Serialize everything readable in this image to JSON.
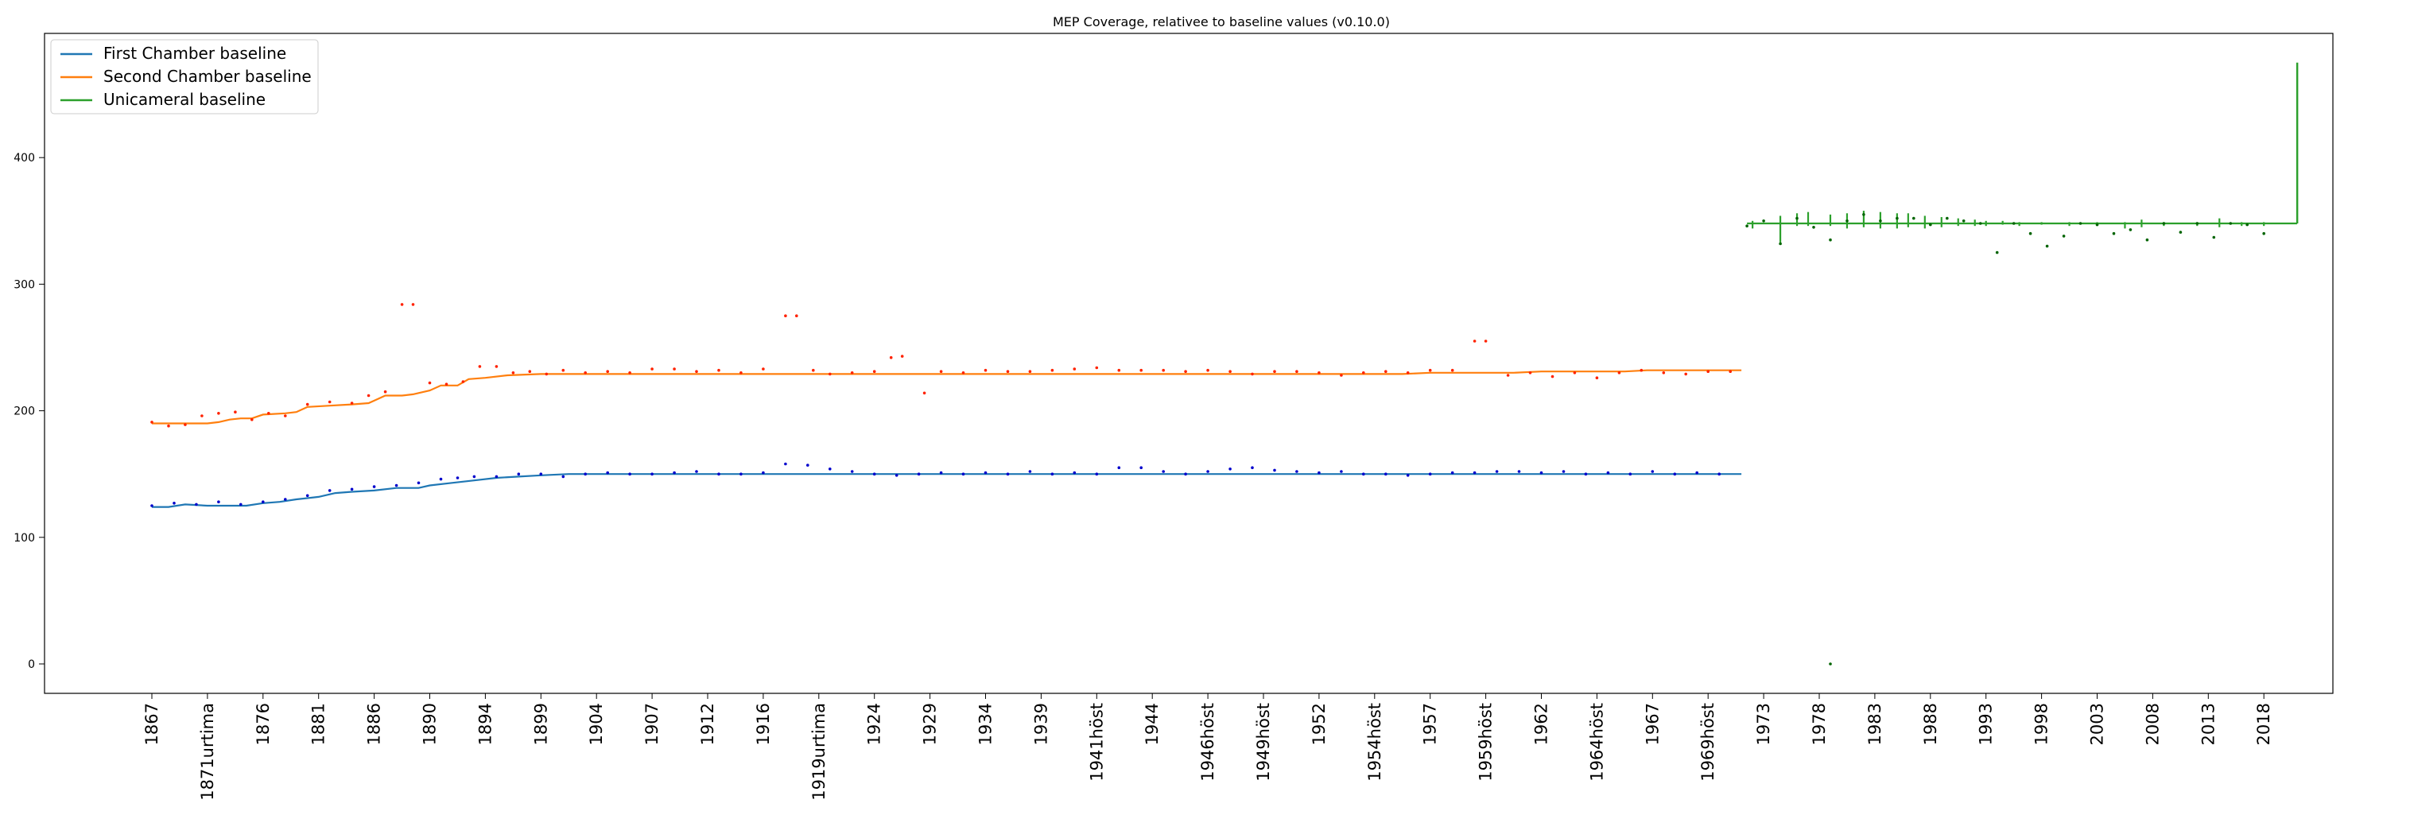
{
  "chart_data": {
    "type": "line",
    "title": "MEP Coverage, relativee to baseline values (v0.10.0)",
    "xlabel": "",
    "ylabel": "",
    "ylim": [
      -20,
      500
    ],
    "y_ticks": [
      0,
      100,
      200,
      300,
      400
    ],
    "x_tick_labels": [
      "1867",
      "1871urtima",
      "1876",
      "1881",
      "1886",
      "1890",
      "1894",
      "1899",
      "1904",
      "1907",
      "1912",
      "1916",
      "1919urtima",
      "1924",
      "1929",
      "1934",
      "1939",
      "1941höst",
      "1944",
      "1946höst",
      "1949höst",
      "1952",
      "1954höst",
      "1957",
      "1959höst",
      "1962",
      "1964höst",
      "1967",
      "1969höst",
      "1973",
      "1978",
      "1983",
      "1988",
      "1993",
      "1998",
      "2003",
      "2008",
      "2013",
      "2018"
    ],
    "legend": {
      "position": "top-left",
      "entries": [
        "First Chamber baseline",
        "Second Chamber baseline",
        "Unicameral baseline"
      ]
    },
    "colors": {
      "first": "#1f77b4",
      "second": "#ff7f0e",
      "uni": "#2ca02c",
      "dots_first": "#0000cc",
      "dots_second": "#ff2200",
      "dots_uni": "#006400"
    },
    "series": [
      {
        "name": "First Chamber baseline",
        "x_range": [
          0,
          28.6
        ],
        "points": [
          [
            0,
            124
          ],
          [
            0.3,
            124
          ],
          [
            0.6,
            126
          ],
          [
            1.0,
            125
          ],
          [
            1.4,
            125
          ],
          [
            1.7,
            125
          ],
          [
            2.0,
            127
          ],
          [
            2.3,
            128
          ],
          [
            2.6,
            130
          ],
          [
            3.0,
            132
          ],
          [
            3.3,
            135
          ],
          [
            3.6,
            136
          ],
          [
            4.0,
            137
          ],
          [
            4.4,
            139
          ],
          [
            4.8,
            139
          ],
          [
            5.0,
            141
          ],
          [
            5.4,
            143
          ],
          [
            5.8,
            145
          ],
          [
            6.2,
            147
          ],
          [
            6.6,
            148
          ],
          [
            7.0,
            149
          ],
          [
            7.5,
            150
          ],
          [
            28.6,
            150
          ]
        ]
      },
      {
        "name": "Second Chamber baseline",
        "x_range": [
          0,
          28.6
        ],
        "points": [
          [
            0,
            190
          ],
          [
            1.0,
            190
          ],
          [
            1.2,
            191
          ],
          [
            1.4,
            193
          ],
          [
            1.6,
            194
          ],
          [
            1.8,
            194
          ],
          [
            2.0,
            197
          ],
          [
            2.4,
            198
          ],
          [
            2.6,
            199
          ],
          [
            2.8,
            203
          ],
          [
            3.2,
            204
          ],
          [
            3.6,
            205
          ],
          [
            3.9,
            206
          ],
          [
            4.0,
            208
          ],
          [
            4.2,
            212
          ],
          [
            4.5,
            212
          ],
          [
            4.7,
            213
          ],
          [
            5.0,
            216
          ],
          [
            5.2,
            220
          ],
          [
            5.5,
            220
          ],
          [
            5.7,
            225
          ],
          [
            6.0,
            226
          ],
          [
            6.4,
            228
          ],
          [
            7.0,
            229
          ],
          [
            8.0,
            229
          ],
          [
            20.0,
            229
          ],
          [
            22.5,
            229
          ],
          [
            23.0,
            230
          ],
          [
            24.5,
            230
          ],
          [
            25.0,
            231
          ],
          [
            26.5,
            231
          ],
          [
            26.9,
            232
          ],
          [
            28.6,
            232
          ]
        ]
      },
      {
        "name": "Unicameral baseline",
        "x_range": [
          28.7,
          38.6
        ],
        "baseline": 348,
        "spike": [
          38.6,
          475
        ]
      }
    ],
    "scatter": {
      "first": [
        [
          0,
          125
        ],
        [
          0.4,
          127
        ],
        [
          0.8,
          126
        ],
        [
          1.2,
          128
        ],
        [
          1.6,
          126
        ],
        [
          2.0,
          128
        ],
        [
          2.4,
          130
        ],
        [
          2.8,
          133
        ],
        [
          3.2,
          137
        ],
        [
          3.6,
          138
        ],
        [
          4.0,
          140
        ],
        [
          4.4,
          141
        ],
        [
          4.8,
          143
        ],
        [
          5.2,
          146
        ],
        [
          5.5,
          147
        ],
        [
          5.8,
          148
        ],
        [
          6.2,
          148
        ],
        [
          6.6,
          150
        ],
        [
          7.0,
          150
        ],
        [
          7.4,
          148
        ],
        [
          7.8,
          150
        ],
        [
          8.2,
          151
        ],
        [
          8.6,
          150
        ],
        [
          9.0,
          150
        ],
        [
          9.4,
          151
        ],
        [
          9.8,
          152
        ],
        [
          10.2,
          150
        ],
        [
          10.6,
          150
        ],
        [
          11.0,
          151
        ],
        [
          11.4,
          158
        ],
        [
          11.8,
          157
        ],
        [
          12.2,
          154
        ],
        [
          12.6,
          152
        ],
        [
          13.0,
          150
        ],
        [
          13.4,
          149
        ],
        [
          13.8,
          150
        ],
        [
          14.2,
          151
        ],
        [
          14.6,
          150
        ],
        [
          15.0,
          151
        ],
        [
          15.4,
          150
        ],
        [
          15.8,
          152
        ],
        [
          16.2,
          150
        ],
        [
          16.6,
          151
        ],
        [
          17.0,
          150
        ],
        [
          17.4,
          155
        ],
        [
          17.8,
          155
        ],
        [
          18.2,
          152
        ],
        [
          18.6,
          150
        ],
        [
          19.0,
          152
        ],
        [
          19.4,
          154
        ],
        [
          19.8,
          155
        ],
        [
          20.2,
          153
        ],
        [
          20.6,
          152
        ],
        [
          21.0,
          151
        ],
        [
          21.4,
          152
        ],
        [
          21.8,
          150
        ],
        [
          22.2,
          150
        ],
        [
          22.6,
          149
        ],
        [
          23.0,
          150
        ],
        [
          23.4,
          151
        ],
        [
          23.8,
          151
        ],
        [
          24.2,
          152
        ],
        [
          24.6,
          152
        ],
        [
          25.0,
          151
        ],
        [
          25.4,
          152
        ],
        [
          25.8,
          150
        ],
        [
          26.2,
          151
        ],
        [
          26.6,
          150
        ],
        [
          27.0,
          152
        ],
        [
          27.4,
          150
        ],
        [
          27.8,
          151
        ],
        [
          28.2,
          150
        ]
      ],
      "second": [
        [
          0,
          191
        ],
        [
          0.3,
          188
        ],
        [
          0.6,
          189
        ],
        [
          0.9,
          196
        ],
        [
          1.2,
          198
        ],
        [
          1.5,
          199
        ],
        [
          1.8,
          193
        ],
        [
          2.1,
          198
        ],
        [
          2.4,
          196
        ],
        [
          2.8,
          205
        ],
        [
          3.2,
          207
        ],
        [
          3.6,
          206
        ],
        [
          3.9,
          212
        ],
        [
          4.2,
          215
        ],
        [
          4.5,
          284
        ],
        [
          4.7,
          284
        ],
        [
          5.0,
          222
        ],
        [
          5.3,
          221
        ],
        [
          5.6,
          223
        ],
        [
          5.9,
          235
        ],
        [
          6.2,
          235
        ],
        [
          6.5,
          230
        ],
        [
          6.8,
          231
        ],
        [
          7.1,
          229
        ],
        [
          7.4,
          232
        ],
        [
          7.8,
          230
        ],
        [
          8.2,
          231
        ],
        [
          8.6,
          230
        ],
        [
          9.0,
          233
        ],
        [
          9.4,
          233
        ],
        [
          9.8,
          231
        ],
        [
          10.2,
          232
        ],
        [
          10.6,
          230
        ],
        [
          11.0,
          233
        ],
        [
          11.4,
          275
        ],
        [
          11.6,
          275
        ],
        [
          11.9,
          232
        ],
        [
          12.2,
          229
        ],
        [
          12.6,
          230
        ],
        [
          13.0,
          231
        ],
        [
          13.3,
          242
        ],
        [
          13.5,
          243
        ],
        [
          13.9,
          214
        ],
        [
          14.2,
          231
        ],
        [
          14.6,
          230
        ],
        [
          15.0,
          232
        ],
        [
          15.4,
          231
        ],
        [
          15.8,
          231
        ],
        [
          16.2,
          232
        ],
        [
          16.6,
          233
        ],
        [
          17.0,
          234
        ],
        [
          17.4,
          232
        ],
        [
          17.8,
          232
        ],
        [
          18.2,
          232
        ],
        [
          18.6,
          231
        ],
        [
          19.0,
          232
        ],
        [
          19.4,
          231
        ],
        [
          19.8,
          229
        ],
        [
          20.2,
          231
        ],
        [
          20.6,
          231
        ],
        [
          21.0,
          230
        ],
        [
          21.4,
          228
        ],
        [
          21.8,
          230
        ],
        [
          22.2,
          231
        ],
        [
          22.6,
          230
        ],
        [
          23.0,
          232
        ],
        [
          23.4,
          232
        ],
        [
          23.8,
          255
        ],
        [
          24.0,
          255
        ],
        [
          24.4,
          228
        ],
        [
          24.8,
          230
        ],
        [
          25.2,
          227
        ],
        [
          25.6,
          230
        ],
        [
          26.0,
          226
        ],
        [
          26.4,
          230
        ],
        [
          26.8,
          232
        ],
        [
          27.2,
          230
        ],
        [
          27.6,
          229
        ],
        [
          28.0,
          231
        ],
        [
          28.4,
          231
        ]
      ],
      "uni": [
        [
          28.7,
          346
        ],
        [
          29.0,
          350
        ],
        [
          29.3,
          332
        ],
        [
          29.6,
          352
        ],
        [
          29.9,
          345
        ],
        [
          30.2,
          335
        ],
        [
          30.5,
          350
        ],
        [
          30.8,
          355
        ],
        [
          31.1,
          350
        ],
        [
          31.4,
          352
        ],
        [
          31.7,
          352
        ],
        [
          32.0,
          347
        ],
        [
          32.3,
          352
        ],
        [
          32.6,
          350
        ],
        [
          32.9,
          348
        ],
        [
          33.2,
          325
        ],
        [
          33.5,
          348
        ],
        [
          33.8,
          340
        ],
        [
          34.1,
          330
        ],
        [
          34.4,
          338
        ],
        [
          34.7,
          348
        ],
        [
          35.0,
          347
        ],
        [
          35.3,
          340
        ],
        [
          35.6,
          343
        ],
        [
          35.9,
          335
        ],
        [
          36.2,
          348
        ],
        [
          36.5,
          341
        ],
        [
          36.8,
          348
        ],
        [
          37.1,
          337
        ],
        [
          37.4,
          348
        ],
        [
          37.7,
          347
        ],
        [
          38.0,
          340
        ],
        [
          30.2,
          0
        ]
      ]
    },
    "uni_spikes": [
      [
        28.8,
        344,
        350
      ],
      [
        29.3,
        333,
        354
      ],
      [
        29.6,
        346,
        356
      ],
      [
        29.8,
        346,
        357
      ],
      [
        30.2,
        346,
        355
      ],
      [
        30.5,
        344,
        356
      ],
      [
        30.8,
        345,
        358
      ],
      [
        31.1,
        344,
        357
      ],
      [
        31.4,
        344,
        356
      ],
      [
        31.6,
        345,
        356
      ],
      [
        31.9,
        344,
        354
      ],
      [
        32.2,
        345,
        353
      ],
      [
        32.5,
        346,
        352
      ],
      [
        32.8,
        346,
        351
      ],
      [
        33.0,
        346,
        350
      ],
      [
        33.3,
        347,
        350
      ],
      [
        33.6,
        346,
        349
      ],
      [
        34.0,
        347,
        349
      ],
      [
        34.5,
        346,
        349
      ],
      [
        35.0,
        346,
        349
      ],
      [
        35.5,
        344,
        349
      ],
      [
        35.8,
        345,
        351
      ],
      [
        36.2,
        346,
        349
      ],
      [
        36.8,
        346,
        349
      ],
      [
        37.2,
        345,
        352
      ],
      [
        37.6,
        346,
        349
      ],
      [
        38.0,
        346,
        349
      ]
    ]
  }
}
